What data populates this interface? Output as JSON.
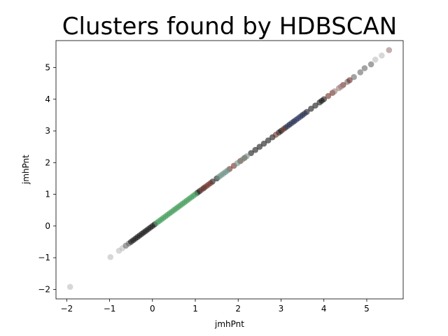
{
  "chart_data": {
    "type": "scatter",
    "title": "Clusters found by HDBSCAN",
    "xlabel": "jmhPnt",
    "ylabel": "jmhPnt",
    "xlim": [
      -2.25,
      5.85
    ],
    "ylim": [
      -2.3,
      5.85
    ],
    "xticks": [
      -2,
      -1,
      0,
      1,
      2,
      3,
      4,
      5
    ],
    "yticks": [
      -2,
      -1,
      0,
      1,
      2,
      3,
      4,
      5
    ],
    "grid": false,
    "legend": "none",
    "series": [
      {
        "color": "#bdbdbd",
        "points": [
          [
            -1.92,
            -1.92
          ],
          [
            -0.98,
            -0.98
          ],
          [
            -0.78,
            -0.78
          ],
          [
            -0.7,
            -0.7
          ],
          [
            5.2,
            5.25
          ],
          [
            5.35,
            5.38
          ]
        ]
      },
      {
        "color": "#666666",
        "points": [
          [
            -0.62,
            -0.62
          ],
          [
            -0.55,
            -0.55
          ],
          [
            4.55,
            4.55
          ],
          [
            4.7,
            4.7
          ],
          [
            4.85,
            4.85
          ],
          [
            4.95,
            4.98
          ],
          [
            5.1,
            5.1
          ]
        ]
      },
      {
        "color": "#111111",
        "points": [
          [
            -0.5,
            -0.5
          ],
          [
            -0.45,
            -0.45
          ],
          [
            -0.4,
            -0.4
          ],
          [
            -0.35,
            -0.35
          ],
          [
            -0.3,
            -0.3
          ],
          [
            -0.25,
            -0.25
          ],
          [
            -0.2,
            -0.2
          ],
          [
            -0.15,
            -0.15
          ],
          [
            -0.1,
            -0.1
          ],
          [
            -0.05,
            -0.05
          ],
          [
            0.0,
            0.0
          ],
          [
            0.05,
            0.05
          ],
          [
            1.05,
            1.05
          ],
          [
            1.1,
            1.1
          ],
          [
            1.2,
            1.2
          ],
          [
            1.4,
            1.4
          ],
          [
            1.5,
            1.5
          ],
          [
            2.3,
            2.3
          ],
          [
            2.4,
            2.4
          ],
          [
            2.5,
            2.5
          ],
          [
            2.6,
            2.6
          ],
          [
            2.7,
            2.7
          ],
          [
            2.8,
            2.8
          ],
          [
            2.95,
            2.95
          ],
          [
            3.0,
            3.0
          ],
          [
            3.1,
            3.1
          ],
          [
            3.2,
            3.2
          ],
          [
            3.3,
            3.3
          ],
          [
            3.5,
            3.5
          ],
          [
            3.6,
            3.6
          ],
          [
            3.7,
            3.7
          ],
          [
            3.8,
            3.8
          ],
          [
            3.9,
            3.9
          ],
          [
            3.95,
            3.95
          ],
          [
            4.0,
            4.0
          ]
        ]
      },
      {
        "color": "#3f9a57",
        "points": [
          [
            0.1,
            0.1
          ],
          [
            0.15,
            0.15
          ],
          [
            0.2,
            0.2
          ],
          [
            0.25,
            0.25
          ],
          [
            0.3,
            0.3
          ],
          [
            0.35,
            0.35
          ],
          [
            0.4,
            0.4
          ],
          [
            0.45,
            0.45
          ],
          [
            0.5,
            0.5
          ],
          [
            0.55,
            0.55
          ],
          [
            0.6,
            0.6
          ],
          [
            0.65,
            0.65
          ],
          [
            0.7,
            0.7
          ],
          [
            0.75,
            0.75
          ],
          [
            0.8,
            0.8
          ],
          [
            0.85,
            0.85
          ],
          [
            0.9,
            0.9
          ],
          [
            0.95,
            0.95
          ],
          [
            1.0,
            1.0
          ]
        ]
      },
      {
        "color": "#6b2a22",
        "points": [
          [
            1.15,
            1.15
          ],
          [
            1.25,
            1.25
          ],
          [
            1.3,
            1.3
          ],
          [
            1.35,
            1.35
          ],
          [
            1.8,
            1.8
          ],
          [
            1.9,
            1.9
          ],
          [
            2.05,
            2.05
          ],
          [
            2.15,
            2.15
          ],
          [
            2.88,
            2.88
          ],
          [
            3.05,
            3.05
          ],
          [
            4.1,
            4.1
          ],
          [
            4.2,
            4.2
          ],
          [
            4.45,
            4.45
          ],
          [
            4.6,
            4.6
          ]
        ]
      },
      {
        "color": "#6b8f86",
        "points": [
          [
            1.55,
            1.55
          ],
          [
            1.6,
            1.6
          ],
          [
            1.65,
            1.65
          ],
          [
            1.7,
            1.7
          ],
          [
            1.75,
            1.75
          ],
          [
            1.98,
            1.98
          ],
          [
            2.1,
            2.1
          ],
          [
            2.2,
            2.2
          ]
        ]
      },
      {
        "color": "#23305e",
        "points": [
          [
            3.15,
            3.15
          ],
          [
            3.25,
            3.25
          ],
          [
            3.35,
            3.35
          ],
          [
            3.4,
            3.4
          ],
          [
            3.45,
            3.45
          ],
          [
            3.55,
            3.55
          ]
        ]
      },
      {
        "color": "#9b7a7a",
        "points": [
          [
            4.25,
            4.25
          ],
          [
            4.35,
            4.35
          ],
          [
            4.4,
            4.4
          ],
          [
            5.52,
            5.55
          ]
        ]
      }
    ]
  }
}
